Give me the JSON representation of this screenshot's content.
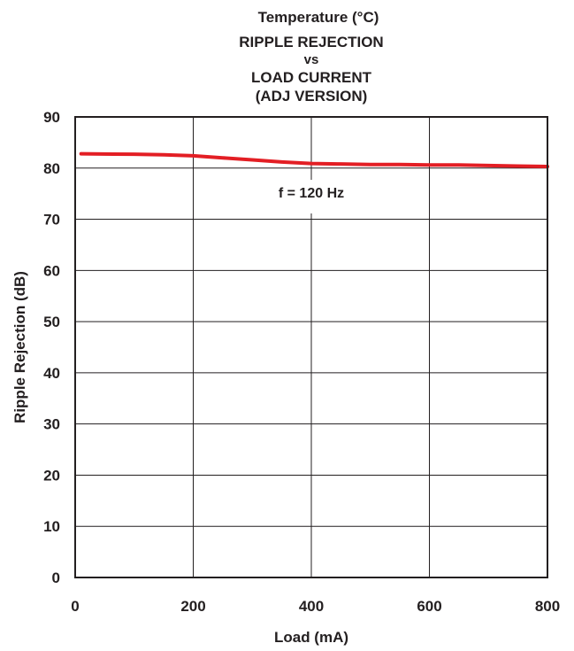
{
  "chart_data": {
    "type": "line",
    "supertitle": "Temperature (°C)",
    "title_lines": [
      "RIPPLE REJECTION",
      "vs",
      "LOAD CURRENT",
      "(ADJ VERSION)"
    ],
    "xlabel": "Load (mA)",
    "ylabel": "Ripple Rejection (dB)",
    "xlim": [
      0,
      800
    ],
    "ylim": [
      0,
      90
    ],
    "xticks": [
      0,
      200,
      400,
      600,
      800
    ],
    "yticks": [
      0,
      10,
      20,
      30,
      40,
      50,
      60,
      70,
      80,
      90
    ],
    "xtick_labels": [
      "0",
      "200",
      "400",
      "600",
      "800"
    ],
    "ytick_labels": [
      "0",
      "10",
      "20",
      "30",
      "40",
      "50",
      "60",
      "70",
      "80",
      "90"
    ],
    "grid": true,
    "annotation": "f = 120 Hz",
    "series": [
      {
        "color": "#e31e24",
        "x": [
          10,
          100,
          150,
          200,
          250,
          300,
          350,
          400,
          450,
          500,
          550,
          600,
          650,
          700,
          750,
          800
        ],
        "y": [
          82.8,
          82.7,
          82.6,
          82.4,
          82.0,
          81.6,
          81.2,
          80.9,
          80.8,
          80.7,
          80.7,
          80.6,
          80.6,
          80.5,
          80.4,
          80.3
        ]
      }
    ]
  }
}
